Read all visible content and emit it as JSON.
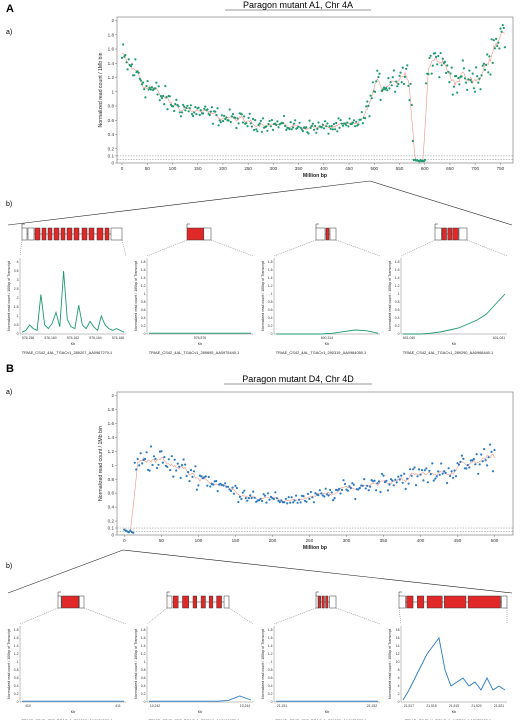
{
  "figure": {
    "panel_a_letter": "A",
    "panel_b_letter": "B",
    "sub_a": "a)",
    "sub_b": "b)"
  },
  "colors": {
    "mutant_a_points": "#1e9a6e",
    "mutant_b_points": "#2b7bc4",
    "trend_line": "#f08a7a",
    "exon_fill": "#e02828",
    "axis": "#444444"
  },
  "chart_data": [
    {
      "type": "scatter",
      "title": "Paragon mutant A1, Chr 4A",
      "xlabel": "Million bp",
      "ylabel": "Normalized read count / 1Mb bin",
      "xlim": [
        -10,
        775
      ],
      "ylim": [
        0,
        2.05
      ],
      "xticks": [
        0,
        50,
        100,
        150,
        200,
        250,
        300,
        350,
        400,
        450,
        500,
        550,
        600,
        650,
        700,
        750
      ],
      "yticks": [
        0,
        0.1,
        0.2,
        0.4,
        0.6,
        0.8,
        1,
        1.2,
        1.4,
        1.6,
        1.8,
        2
      ],
      "threshold_lines": [
        0.05,
        0.1
      ],
      "series": [
        {
          "values": "per-1Mb-bin normalized read counts, chromosome 4A (approx. 760 bins)"
        }
      ],
      "profile": [
        {
          "x": 0,
          "y": 1.45
        },
        {
          "x": 25,
          "y": 1.3
        },
        {
          "x": 50,
          "y": 1.08
        },
        {
          "x": 75,
          "y": 0.95
        },
        {
          "x": 100,
          "y": 0.82
        },
        {
          "x": 150,
          "y": 0.72
        },
        {
          "x": 200,
          "y": 0.64
        },
        {
          "x": 250,
          "y": 0.58
        },
        {
          "x": 300,
          "y": 0.54
        },
        {
          "x": 350,
          "y": 0.51
        },
        {
          "x": 400,
          "y": 0.5
        },
        {
          "x": 450,
          "y": 0.52
        },
        {
          "x": 480,
          "y": 0.62
        },
        {
          "x": 500,
          "y": 1.05
        },
        {
          "x": 530,
          "y": 1.15
        },
        {
          "x": 560,
          "y": 1.25
        },
        {
          "x": 575,
          "y": 1.1
        },
        {
          "x": 577,
          "y": 0.02
        },
        {
          "x": 601,
          "y": 0.02
        },
        {
          "x": 603,
          "y": 1.3
        },
        {
          "x": 620,
          "y": 1.5
        },
        {
          "x": 650,
          "y": 1.25
        },
        {
          "x": 700,
          "y": 1.1
        },
        {
          "x": 740,
          "y": 1.6
        },
        {
          "x": 760,
          "y": 1.9
        }
      ],
      "deletion_region": [
        577,
        601
      ]
    },
    {
      "type": "scatter",
      "title": "Paragon mutant D4, Chr 4D",
      "xlabel": "Million bp",
      "ylabel": "Normalized read count / 1Mb bin",
      "xlim": [
        -10,
        525
      ],
      "ylim": [
        0,
        2.05
      ],
      "xticks": [
        0,
        50,
        100,
        150,
        200,
        250,
        300,
        350,
        400,
        450,
        500
      ],
      "yticks": [
        0,
        0.1,
        0.2,
        0.4,
        0.6,
        0.8,
        1,
        1.2,
        1.4,
        1.6,
        1.8,
        2
      ],
      "threshold_lines": [
        0.05,
        0.1
      ],
      "series": [
        {
          "values": "per-1Mb-bin normalized read counts, chromosome 4D (approx. 510 bins)"
        }
      ],
      "profile": [
        {
          "x": 0,
          "y": 0.05
        },
        {
          "x": 12,
          "y": 0.03
        },
        {
          "x": 14,
          "y": 0.9
        },
        {
          "x": 25,
          "y": 1.15
        },
        {
          "x": 50,
          "y": 1.05
        },
        {
          "x": 100,
          "y": 0.85
        },
        {
          "x": 150,
          "y": 0.62
        },
        {
          "x": 200,
          "y": 0.5
        },
        {
          "x": 250,
          "y": 0.52
        },
        {
          "x": 300,
          "y": 0.65
        },
        {
          "x": 350,
          "y": 0.78
        },
        {
          "x": 400,
          "y": 0.85
        },
        {
          "x": 450,
          "y": 0.95
        },
        {
          "x": 500,
          "y": 1.15
        }
      ],
      "deletion_region": [
        0,
        13
      ]
    }
  ],
  "genes_a": [
    {
      "name": "TRIAE_CS42_4AL_TGACv1_289207_AA0967270.1",
      "xlabel": "Kb",
      "ylabel": "Normalized read count / 100bp of Transcript",
      "xticks": [
        "576,158",
        "576,160",
        "576,162",
        "576,164",
        "576,166"
      ],
      "yticks": [
        "0",
        "0.5",
        "1",
        "1.5",
        "2",
        "2.5",
        "3",
        "3.5",
        "4"
      ],
      "coverage": [
        0.1,
        0.2,
        0.5,
        0.3,
        0.2,
        2.2,
        0.5,
        0.3,
        0.6,
        1.2,
        0.4,
        3.5,
        0.8,
        0.4,
        0.3,
        1.6,
        0.5,
        0.3,
        0.7,
        0.4,
        0.2,
        1.0,
        0.5,
        0.3,
        0.2,
        0.3,
        0.2,
        0.1
      ],
      "ymax": 4
    },
    {
      "name": "TRIAE_CS42_4AL_TGACv1_289695_AA0975440.1",
      "xlabel": "Kb",
      "ylabel": "Normalized read count / 100bp of Transcript",
      "xticks": [
        "576,576"
      ],
      "yticks": [
        "0",
        "0.2",
        "0.4",
        "0.6",
        "0.8",
        "1",
        "1.2",
        "1.4",
        "1.6",
        "1.8"
      ],
      "coverage": [
        0.02,
        0.02,
        0.02,
        0.02,
        0.02,
        0.02,
        0.02,
        0.02,
        0.02,
        0.02
      ],
      "ymax": 1.8
    },
    {
      "name": "TRIAE_CS42_4AL_TGACv1_290319_AA0984050.1",
      "xlabel": "Kb",
      "ylabel": "Normalized read count / 100bp of Transcript",
      "xticks": [
        "600,314"
      ],
      "yticks": [
        "0",
        "0.2",
        "0.4",
        "0.6",
        "0.8",
        "1",
        "1.2",
        "1.4",
        "1.6",
        "1.8"
      ],
      "coverage": [
        0.0,
        0.0,
        0.0,
        0.0,
        0.0,
        0.02,
        0.06,
        0.1,
        0.08,
        0.02
      ],
      "ymax": 1.8
    },
    {
      "name": "TRIAE_CS42_4AL_TGACv1_289290_AA0968440.1",
      "xlabel": "Kb",
      "ylabel": "Normalized read count / 100bp of Transcript",
      "xticks": [
        "601,040",
        "601,041"
      ],
      "yticks": [
        "0",
        "0.2",
        "0.4",
        "0.6",
        "0.8",
        "1",
        "1.2",
        "1.4",
        "1.6",
        "1.8"
      ],
      "coverage": [
        0.0,
        0.0,
        0.0,
        0.02,
        0.05,
        0.1,
        0.15,
        0.25,
        0.35,
        0.5,
        0.75,
        1.0
      ],
      "ymax": 1.8
    }
  ],
  "genes_b": [
    {
      "name": "TRIAE_CS42_4DS_TGACv1_361898_AA1174000.1",
      "xlabel": "Kb",
      "ylabel": "Normalized read count / 100bp of Transcript",
      "xticks": [
        "410",
        "411"
      ],
      "yticks": [
        "0",
        "0.2",
        "0.4",
        "0.6",
        "0.8",
        "1",
        "1.2",
        "1.4",
        "1.6",
        "1.8"
      ],
      "coverage": [
        0.02,
        0.02,
        0.02,
        0.02,
        0.02,
        0.02,
        0.02,
        0.02,
        0.02,
        0.02
      ],
      "ymax": 1.8
    },
    {
      "name": "TRIAE_CS42_4DS_TGACv1_361544_AA1169970.1",
      "xlabel": "Kb",
      "ylabel": "Normalized read count / 100bp of Transcript",
      "xticks": [
        "10,242",
        "10,244"
      ],
      "yticks": [
        "0",
        "0.2",
        "0.4",
        "0.6",
        "0.8",
        "1",
        "1.2",
        "1.4",
        "1.6",
        "1.8"
      ],
      "coverage": [
        0.02,
        0.02,
        0.02,
        0.02,
        0.02,
        0.02,
        0.02,
        0.04,
        0.15,
        0.05
      ],
      "ymax": 1.8
    },
    {
      "name": "TRIAE_CS42_4DS_TGACv1_361688_AA1171580.1",
      "xlabel": "Kb",
      "ylabel": "Normalized read count / 100bp of Transcript",
      "xticks": [
        "21,151",
        "21,152"
      ],
      "yticks": [
        "0",
        "0.2",
        "0.4",
        "0.6",
        "0.8",
        "1",
        "1.2",
        "1.4",
        "1.6",
        "1.8"
      ],
      "coverage": [
        0.02,
        0.02,
        0.02,
        0.02,
        0.02,
        0.02,
        0.02,
        0.02,
        0.02,
        0.02
      ],
      "ymax": 1.8
    },
    {
      "name": "TRIAE_CS42_U_TGACv1_643786_AA2135080.1",
      "xlabel": "Kb",
      "ylabel": "Normalized read count / 100bp of Transcript",
      "xticks": [
        "21,517",
        "21,518",
        "21,519",
        "21,520",
        "21,521"
      ],
      "yticks": [
        "0",
        "2",
        "4",
        "6",
        "8",
        "10",
        "12",
        "14",
        "16",
        "18"
      ],
      "coverage": [
        0.5,
        3,
        6,
        9,
        12,
        14,
        16,
        8,
        4,
        5,
        6,
        4,
        5,
        3,
        6,
        3,
        4,
        3
      ],
      "ymax": 18
    }
  ]
}
